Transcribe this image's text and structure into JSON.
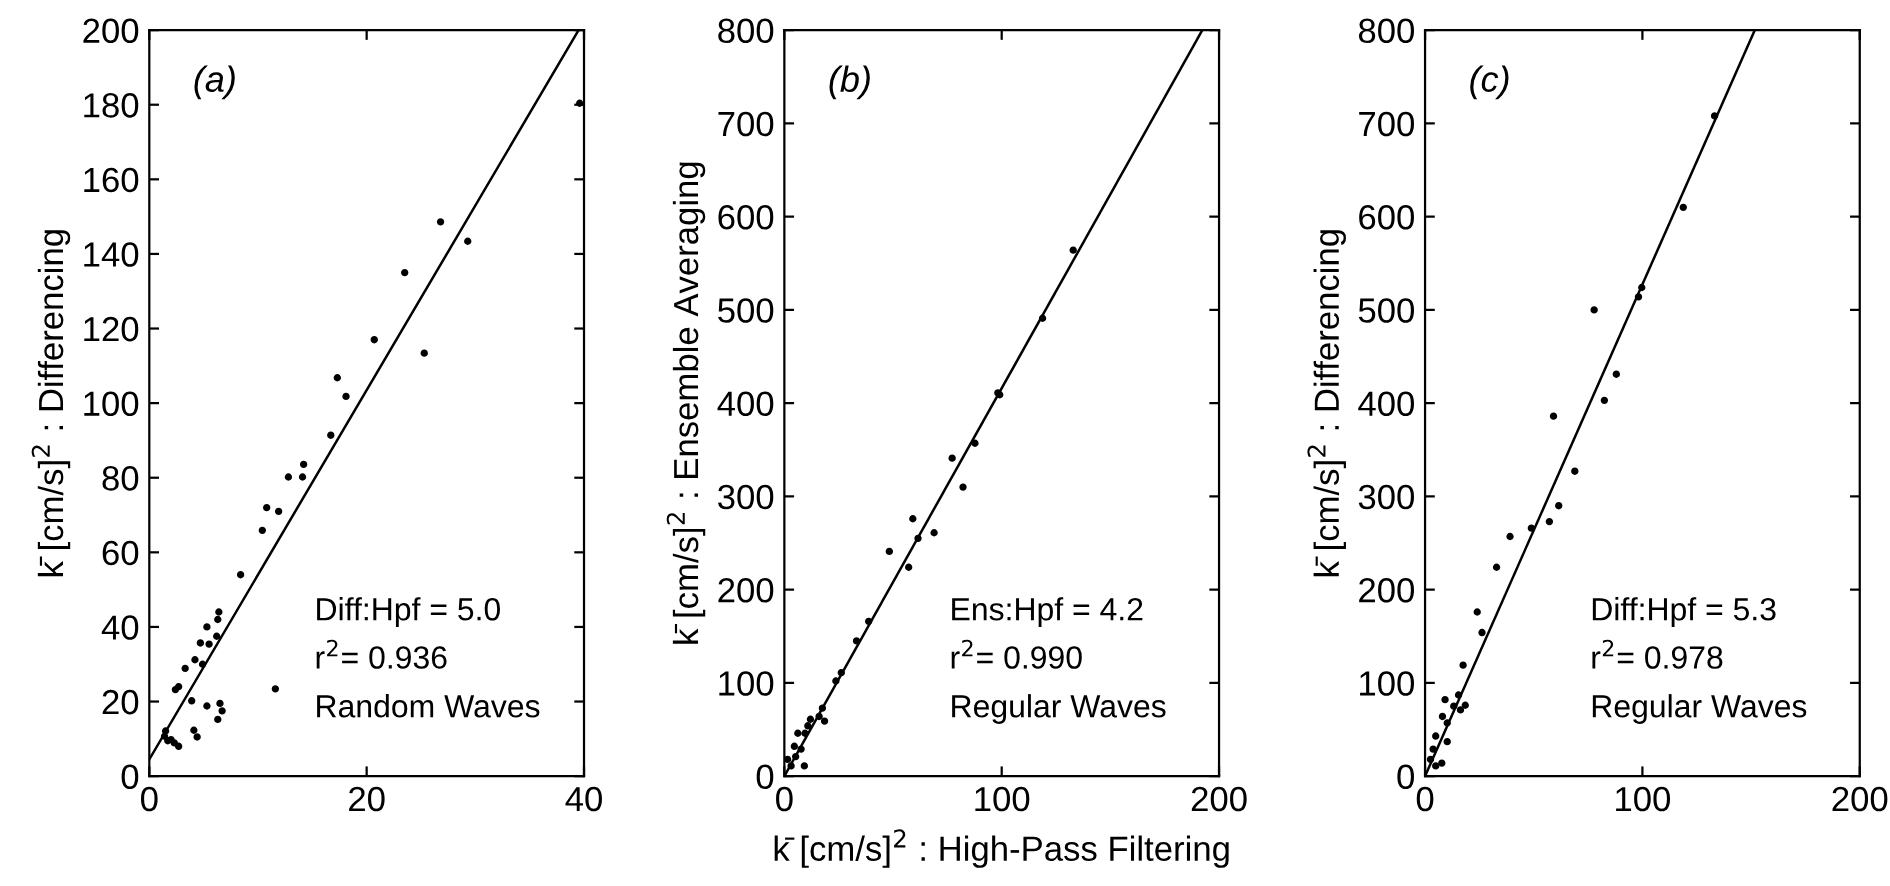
{
  "chart_data": [
    {
      "type": "scatter",
      "ylabel": "k̄ [cm/s]$^{2}$ : Differencing",
      "xlim": [
        0,
        40
      ],
      "ylim": [
        0,
        200
      ],
      "xticks": [
        0,
        20,
        40
      ],
      "yticks": [
        0,
        20,
        40,
        60,
        80,
        100,
        120,
        140,
        160,
        180,
        200
      ],
      "grid": false,
      "legend": false,
      "annotations": [
        "(a)",
        "Diff:Hpf = 5.0",
        "r$^{2}$= 0.936",
        "Random Waves"
      ],
      "series": [
        {
          "color": "#000000",
          "marker": "circle",
          "x": [
            39.6,
            26.8,
            29.3,
            23.5,
            20.7,
            25.3,
            17.3,
            18.1,
            16.7,
            14.2,
            14.1,
            12.8,
            10.8,
            11.9,
            10.4,
            8.4,
            6.4,
            6.3,
            6.2,
            5.3,
            4.7,
            5.5,
            4.2,
            4.9,
            3.3,
            2.7,
            2.4,
            11.6,
            3.9,
            5.3,
            6.5,
            6.7,
            6.3,
            4.1,
            4.4,
            1.5,
            1.4,
            1.7,
            2.3,
            2.7,
            2.0
          ],
          "values": [
            180.4,
            148.6,
            143.4,
            135,
            117,
            113.4,
            106.8,
            101.8,
            91.4,
            83.6,
            80.2,
            80.2,
            72,
            71,
            65.9,
            54,
            44,
            42,
            37.5,
            40,
            35.7,
            35.4,
            31.2,
            30,
            28.9,
            24,
            23.2,
            23.4,
            20.2,
            18.8,
            19.5,
            17.5,
            15.2,
            12.3,
            10.5,
            12.1,
            10.7,
            9.5,
            8.9,
            8,
            9.8
          ]
        },
        {
          "type": "line",
          "color": "#000000",
          "line_style": "solid",
          "x": [
            0,
            39.5
          ],
          "values": [
            4.5,
            200
          ]
        }
      ]
    },
    {
      "type": "scatter",
      "ylabel": "k̄ [cm/s]$^{2}$ : Ensemble Averaging",
      "xlabel": "k̄ [cm/s]$^{2}$ : High-Pass Filtering",
      "xlim": [
        0,
        200
      ],
      "ylim": [
        0,
        800
      ],
      "xticks": [
        0,
        100,
        200
      ],
      "yticks": [
        0,
        100,
        200,
        300,
        400,
        500,
        600,
        700,
        800
      ],
      "grid": false,
      "legend": false,
      "annotations": [
        "(b)",
        "Ens:Hpf = 4.2",
        "r$^{2}$= 0.990",
        "Regular Waves"
      ],
      "series": [
        {
          "color": "#000000",
          "marker": "circle",
          "x": [
            132.9,
            118.8,
            99.1,
            98.2,
            87.7,
            77.2,
            82.2,
            59.1,
            61.5,
            68.9,
            48.3,
            57.2,
            38.8,
            33.2,
            26.2,
            23.7,
            17.5,
            16,
            18.5,
            12,
            10.8,
            9.5,
            6.2,
            4.6,
            7.7,
            1.5,
            3.1,
            9.2,
            5.2
          ],
          "values": [
            564,
            491,
            409,
            411,
            357,
            341,
            310,
            276,
            255,
            261,
            241,
            224,
            166,
            145,
            111,
            102,
            73,
            64,
            59,
            61,
            54,
            46,
            46,
            32,
            29,
            18,
            11,
            11,
            21
          ]
        },
        {
          "type": "line",
          "color": "#000000",
          "line_style": "solid",
          "x": [
            0,
            192.3
          ],
          "values": [
            0,
            800
          ]
        }
      ]
    },
    {
      "type": "scatter",
      "ylabel": "k̄ [cm/s]$^{2}$ : Differencing",
      "xlim": [
        0,
        200
      ],
      "ylim": [
        0,
        800
      ],
      "xticks": [
        0,
        100,
        200
      ],
      "yticks": [
        0,
        100,
        200,
        300,
        400,
        500,
        600,
        700,
        800
      ],
      "grid": false,
      "legend": false,
      "annotations": [
        "(c)",
        "Diff:Hpf = 5.3",
        "r$^{2}$= 0.978",
        "Regular Waves"
      ],
      "series": [
        {
          "color": "#000000",
          "marker": "circle",
          "x": [
            133.2,
            118.8,
            99.7,
            98.2,
            77.8,
            88,
            82.5,
            59.1,
            68.9,
            61.5,
            57.2,
            48.9,
            39.1,
            32.9,
            24,
            26.2,
            17.5,
            15.4,
            13.2,
            18.5,
            16.3,
            9.2,
            8,
            10.2,
            10.2,
            4.9,
            3.7,
            2.5,
            7.7,
            4.9
          ],
          "values": [
            708,
            610,
            524,
            514,
            500,
            431,
            403,
            386,
            327,
            290,
            273,
            266,
            257,
            224,
            176,
            154,
            119,
            87,
            75,
            76,
            71,
            82,
            64,
            57,
            37,
            43,
            29,
            18,
            14,
            11
          ]
        },
        {
          "type": "line",
          "color": "#000000",
          "line_style": "solid",
          "x": [
            0,
            151.7
          ],
          "values": [
            0,
            800
          ]
        }
      ]
    }
  ]
}
